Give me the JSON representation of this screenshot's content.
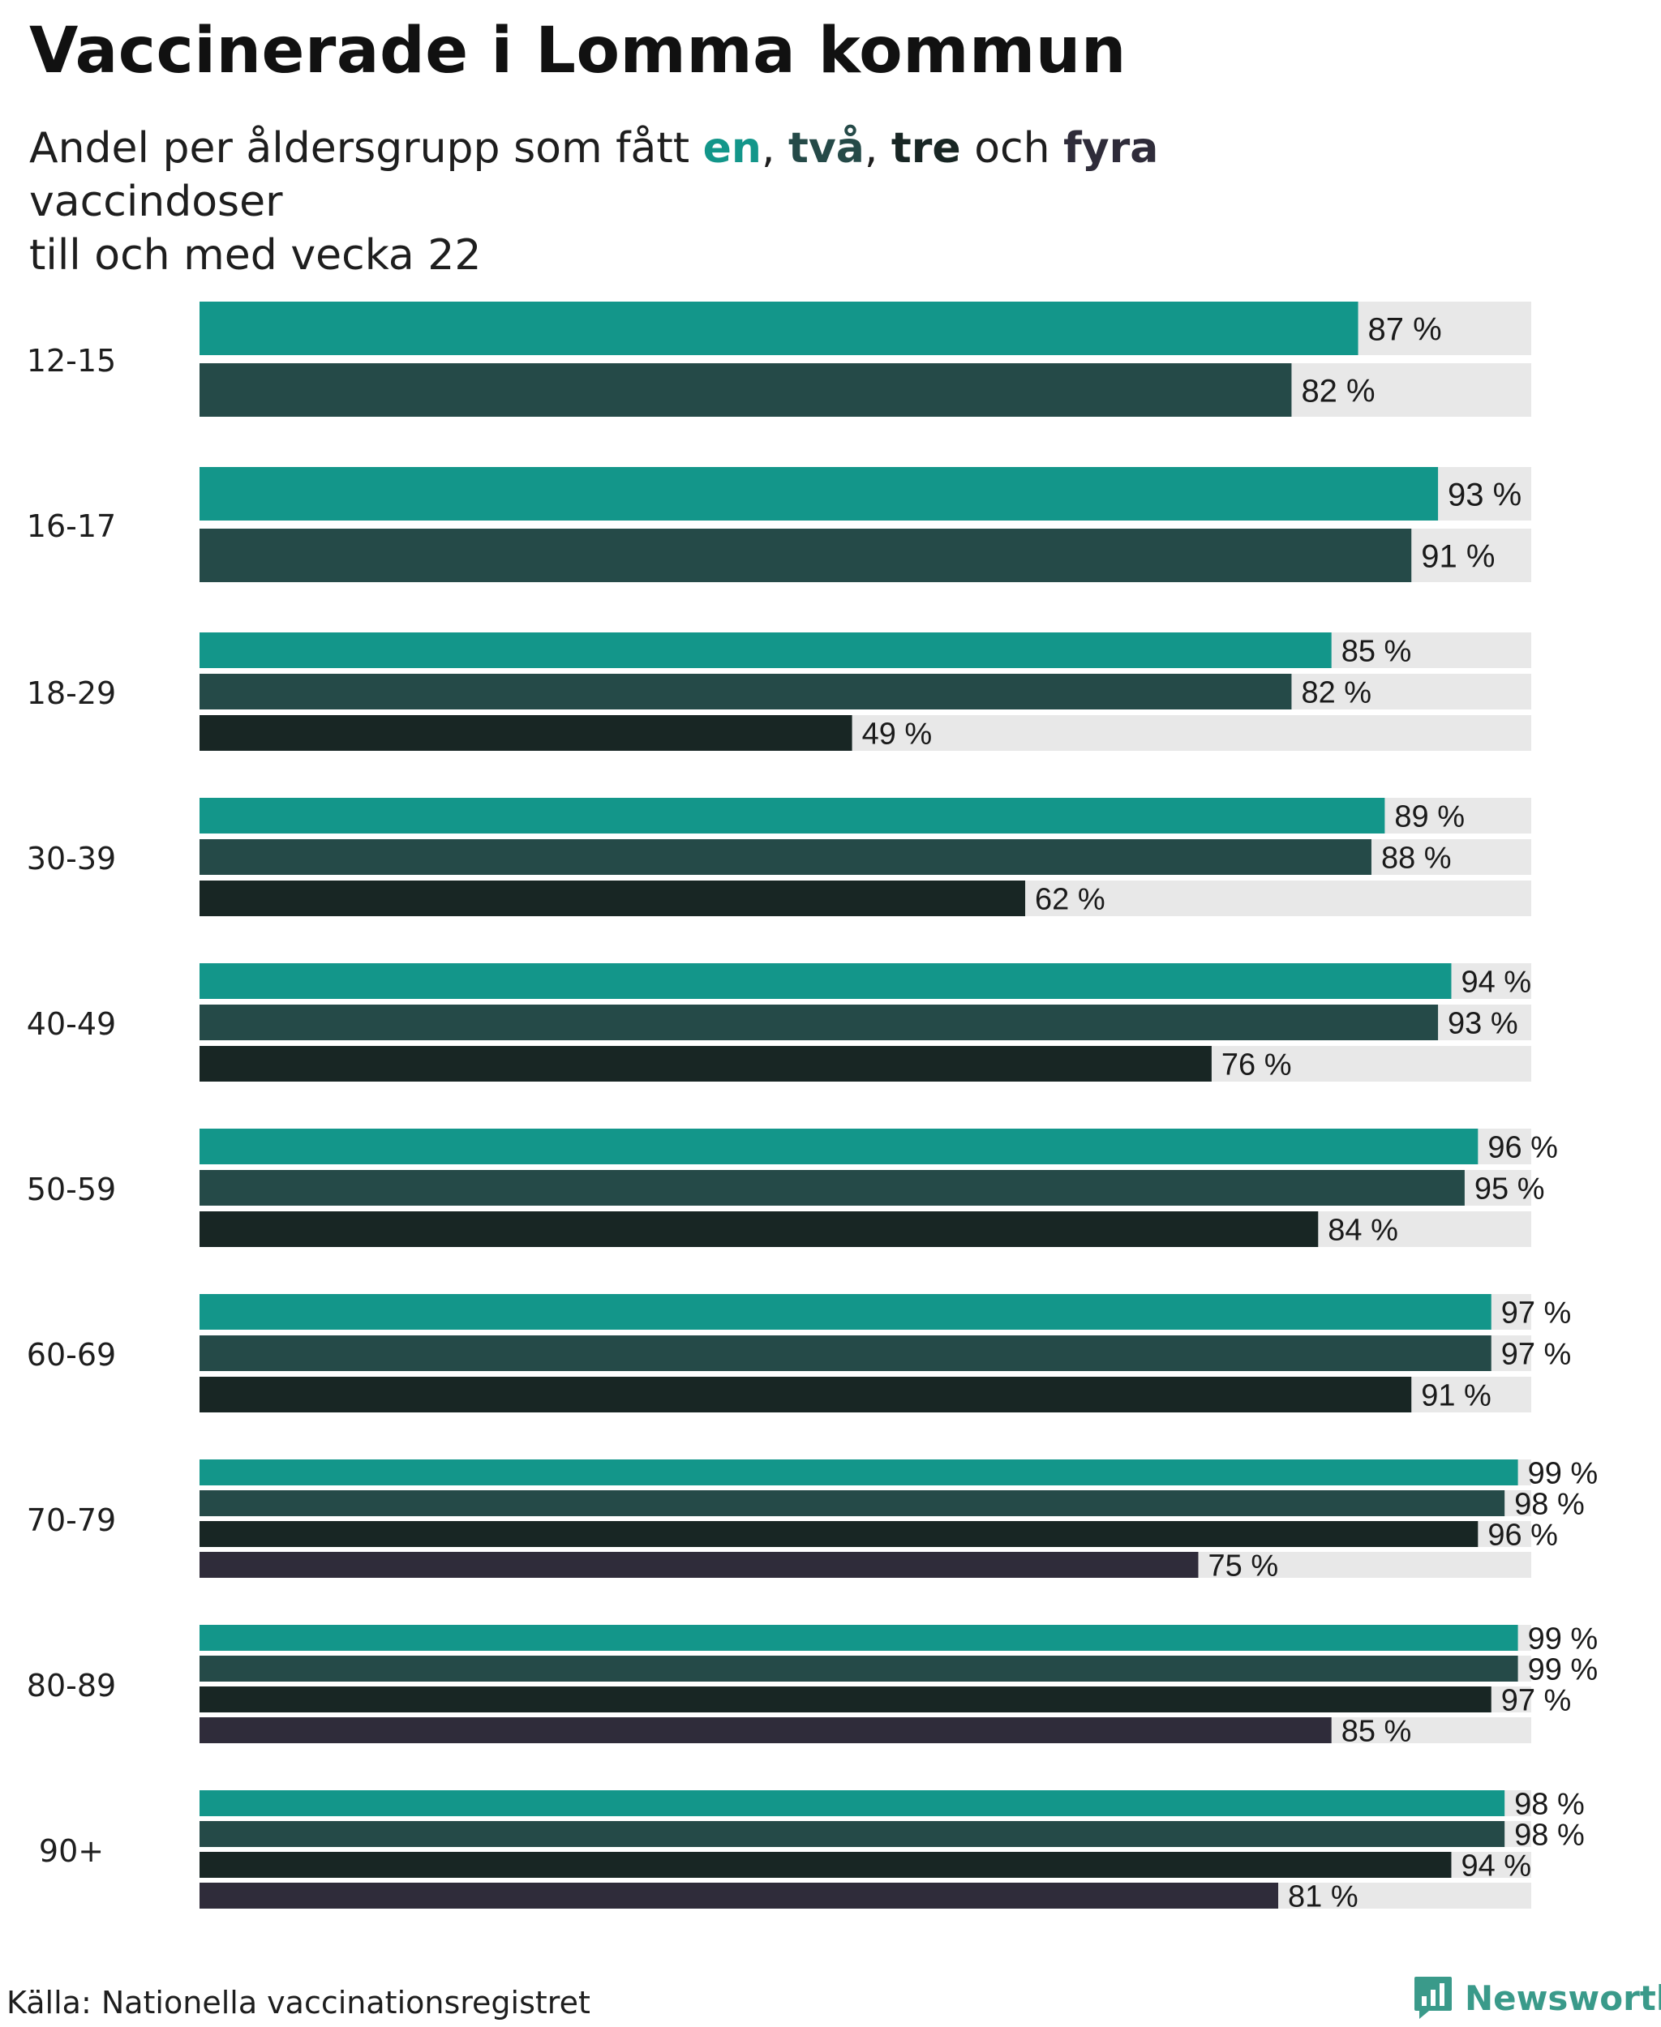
{
  "header": {
    "title": "Vaccinerade i Lomma kommun",
    "subtitle_prefix": "Andel per åldersgrupp som fått ",
    "dose1_word": "en",
    "comma1": ", ",
    "dose2_word": "två",
    "comma2": ", ",
    "dose3_word": "tre",
    "and_word": " och ",
    "dose4_word": "fyra",
    "subtitle_suffix": " vaccindoser",
    "subtitle_line2": "till och med vecka 22"
  },
  "footer": {
    "source": "Källa: Nationella vaccinationsregistret",
    "brand": "Newsworthy"
  },
  "colors": {
    "dose1": "#13968a",
    "dose2": "#254a48",
    "dose3": "#182624",
    "dose4": "#2f2c3a",
    "track": "#e8e8e8",
    "brand": "#3a9a8a"
  },
  "chart_data": {
    "type": "bar",
    "orientation": "horizontal",
    "value_suffix": " %",
    "xlim": [
      0,
      100
    ],
    "categories": [
      "12-15",
      "16-17",
      "18-29",
      "30-39",
      "40-49",
      "50-59",
      "60-69",
      "70-79",
      "80-89",
      "90+"
    ],
    "series": [
      {
        "name": "en",
        "color": "#13968a",
        "values": [
          87,
          93,
          85,
          89,
          94,
          96,
          97,
          99,
          99,
          98
        ]
      },
      {
        "name": "två",
        "color": "#254a48",
        "values": [
          82,
          91,
          82,
          88,
          93,
          95,
          97,
          98,
          99,
          98
        ]
      },
      {
        "name": "tre",
        "color": "#182624",
        "values": [
          null,
          null,
          49,
          62,
          76,
          84,
          91,
          96,
          97,
          94
        ]
      },
      {
        "name": "fyra",
        "color": "#2f2c3a",
        "values": [
          null,
          null,
          null,
          null,
          null,
          null,
          null,
          75,
          85,
          81
        ]
      }
    ]
  }
}
